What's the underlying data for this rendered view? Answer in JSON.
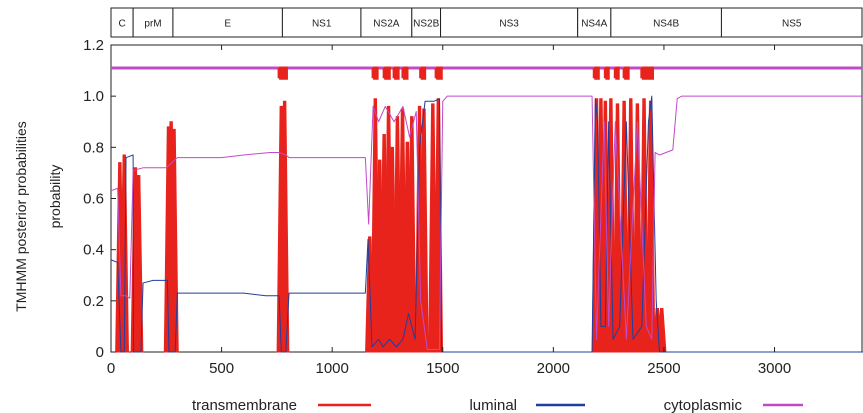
{
  "chart_data": {
    "type": "line",
    "ylabel_outer": "TMHMM posterior probabilities",
    "ylabel_inner": "probability",
    "xlim": [
      0,
      3400
    ],
    "ylim": [
      0,
      1.2
    ],
    "x_ticks": [
      "0",
      "500",
      "1000",
      "1500",
      "2000",
      "2500",
      "3000"
    ],
    "x_tick_values": [
      0,
      500,
      1000,
      1500,
      2000,
      2500,
      3000
    ],
    "y_ticks": [
      "0",
      "0.2",
      "0.4",
      "0.6",
      "0.8",
      "1.0",
      "1.2"
    ],
    "y_tick_values": [
      0,
      0.2,
      0.4,
      0.6,
      0.8,
      1.0,
      1.2
    ],
    "domains": [
      {
        "label": "C",
        "start": 0,
        "end": 100
      },
      {
        "label": "prM",
        "start": 100,
        "end": 280
      },
      {
        "label": "E",
        "start": 280,
        "end": 775
      },
      {
        "label": "NS1",
        "start": 775,
        "end": 1130
      },
      {
        "label": "NS2A",
        "start": 1130,
        "end": 1360
      },
      {
        "label": "NS2B",
        "start": 1360,
        "end": 1490
      },
      {
        "label": "NS3",
        "start": 1490,
        "end": 2110
      },
      {
        "label": "NS4A",
        "start": 2110,
        "end": 2260
      },
      {
        "label": "NS4B",
        "start": 2260,
        "end": 2760
      },
      {
        "label": "NS5",
        "start": 2760,
        "end": 3400
      }
    ],
    "series": [
      {
        "name": "transmembrane",
        "color": "#e8231c",
        "peaks": [
          [
            40,
            0.74
          ],
          [
            60,
            0.77
          ],
          [
            110,
            0.72
          ],
          [
            125,
            0.69
          ],
          [
            260,
            0.88
          ],
          [
            272,
            0.9
          ],
          [
            285,
            0.87
          ],
          [
            770,
            0.96
          ],
          [
            785,
            0.98
          ],
          [
            1170,
            0.45
          ],
          [
            1195,
            0.99
          ],
          [
            1215,
            0.75
          ],
          [
            1235,
            0.85
          ],
          [
            1255,
            0.96
          ],
          [
            1272,
            0.8
          ],
          [
            1295,
            0.92
          ],
          [
            1318,
            0.95
          ],
          [
            1340,
            0.82
          ],
          [
            1360,
            0.92
          ],
          [
            1395,
            0.96
          ],
          [
            1415,
            0.95
          ],
          [
            1455,
            0.97
          ],
          [
            1480,
            0.99
          ],
          [
            2195,
            0.99
          ],
          [
            2215,
            0.99
          ],
          [
            2235,
            0.98
          ],
          [
            2260,
            0.99
          ],
          [
            2290,
            0.97
          ],
          [
            2320,
            0.98
          ],
          [
            2350,
            0.99
          ],
          [
            2380,
            0.97
          ],
          [
            2410,
            0.99
          ],
          [
            2440,
            0.98
          ],
          [
            2470,
            0.17
          ],
          [
            2490,
            0.17
          ]
        ]
      },
      {
        "name": "luminal",
        "color": "#1f3f9e",
        "points": [
          [
            0,
            0.36
          ],
          [
            30,
            0.35
          ],
          [
            45,
            0.0
          ],
          [
            60,
            0.0
          ],
          [
            68,
            0.76
          ],
          [
            100,
            0.77
          ],
          [
            102,
            0.0
          ],
          [
            135,
            0.0
          ],
          [
            145,
            0.27
          ],
          [
            190,
            0.28
          ],
          [
            255,
            0.28
          ],
          [
            262,
            0.0
          ],
          [
            290,
            0.0
          ],
          [
            300,
            0.23
          ],
          [
            600,
            0.23
          ],
          [
            700,
            0.22
          ],
          [
            760,
            0.22
          ],
          [
            770,
            0.0
          ],
          [
            790,
            0.0
          ],
          [
            805,
            0.23
          ],
          [
            1150,
            0.23
          ],
          [
            1162,
            0.44
          ],
          [
            1180,
            0.02
          ],
          [
            1210,
            0.05
          ],
          [
            1230,
            0.02
          ],
          [
            1260,
            0.05
          ],
          [
            1290,
            0.02
          ],
          [
            1320,
            0.05
          ],
          [
            1345,
            0.15
          ],
          [
            1375,
            0.05
          ],
          [
            1395,
            0.8
          ],
          [
            1420,
            0.98
          ],
          [
            1460,
            0.98
          ],
          [
            1485,
            0.99
          ],
          [
            1495,
            0.0
          ],
          [
            2175,
            0.0
          ],
          [
            2190,
            0.99
          ],
          [
            2200,
            0.9
          ],
          [
            2215,
            0.1
          ],
          [
            2235,
            0.1
          ],
          [
            2250,
            0.9
          ],
          [
            2270,
            0.05
          ],
          [
            2300,
            0.1
          ],
          [
            2330,
            0.9
          ],
          [
            2360,
            0.05
          ],
          [
            2400,
            0.1
          ],
          [
            2430,
            0.9
          ],
          [
            2445,
            1.0
          ],
          [
            2465,
            0.2
          ],
          [
            2480,
            0.0
          ],
          [
            3400,
            0.0
          ]
        ]
      },
      {
        "name": "cytoplasmic",
        "color": "#c04bc8",
        "points": [
          [
            0,
            0.63
          ],
          [
            30,
            0.64
          ],
          [
            45,
            0.22
          ],
          [
            68,
            0.22
          ],
          [
            85,
            0.21
          ],
          [
            100,
            0.71
          ],
          [
            145,
            0.72
          ],
          [
            250,
            0.72
          ],
          [
            300,
            0.76
          ],
          [
            500,
            0.76
          ],
          [
            600,
            0.77
          ],
          [
            720,
            0.78
          ],
          [
            760,
            0.78
          ],
          [
            790,
            0.77
          ],
          [
            805,
            0.76
          ],
          [
            1150,
            0.76
          ],
          [
            1165,
            0.5
          ],
          [
            1185,
            0.96
          ],
          [
            1210,
            0.9
          ],
          [
            1240,
            0.96
          ],
          [
            1280,
            0.9
          ],
          [
            1320,
            0.96
          ],
          [
            1350,
            0.84
          ],
          [
            1380,
            0.94
          ],
          [
            1400,
            0.2
          ],
          [
            1430,
            0.01
          ],
          [
            1485,
            0.01
          ],
          [
            1500,
            0.98
          ],
          [
            1520,
            1.0
          ],
          [
            2175,
            1.0
          ],
          [
            2195,
            0.05
          ],
          [
            2230,
            0.9
          ],
          [
            2250,
            0.1
          ],
          [
            2280,
            0.9
          ],
          [
            2330,
            0.05
          ],
          [
            2380,
            0.9
          ],
          [
            2420,
            0.1
          ],
          [
            2445,
            0.05
          ],
          [
            2460,
            0.78
          ],
          [
            2480,
            0.77
          ],
          [
            2540,
            0.79
          ],
          [
            2560,
            0.99
          ],
          [
            2580,
            1.0
          ],
          [
            3400,
            1.0
          ]
        ]
      }
    ],
    "topology_line": {
      "baseline": 1.11,
      "tm_level": 1.07,
      "segments": [
        [
          760,
          800
        ],
        [
          1185,
          1210
        ],
        [
          1235,
          1265
        ],
        [
          1280,
          1305
        ],
        [
          1320,
          1345
        ],
        [
          1400,
          1425
        ],
        [
          1470,
          1500
        ],
        [
          2185,
          2210
        ],
        [
          2235,
          2255
        ],
        [
          2280,
          2300
        ],
        [
          2320,
          2345
        ],
        [
          2400,
          2455
        ]
      ]
    },
    "legend": [
      {
        "label": "transmembrane",
        "color": "#e8231c"
      },
      {
        "label": "luminal",
        "color": "#1f3f9e"
      },
      {
        "label": "cytoplasmic",
        "color": "#c04bc8"
      }
    ]
  }
}
